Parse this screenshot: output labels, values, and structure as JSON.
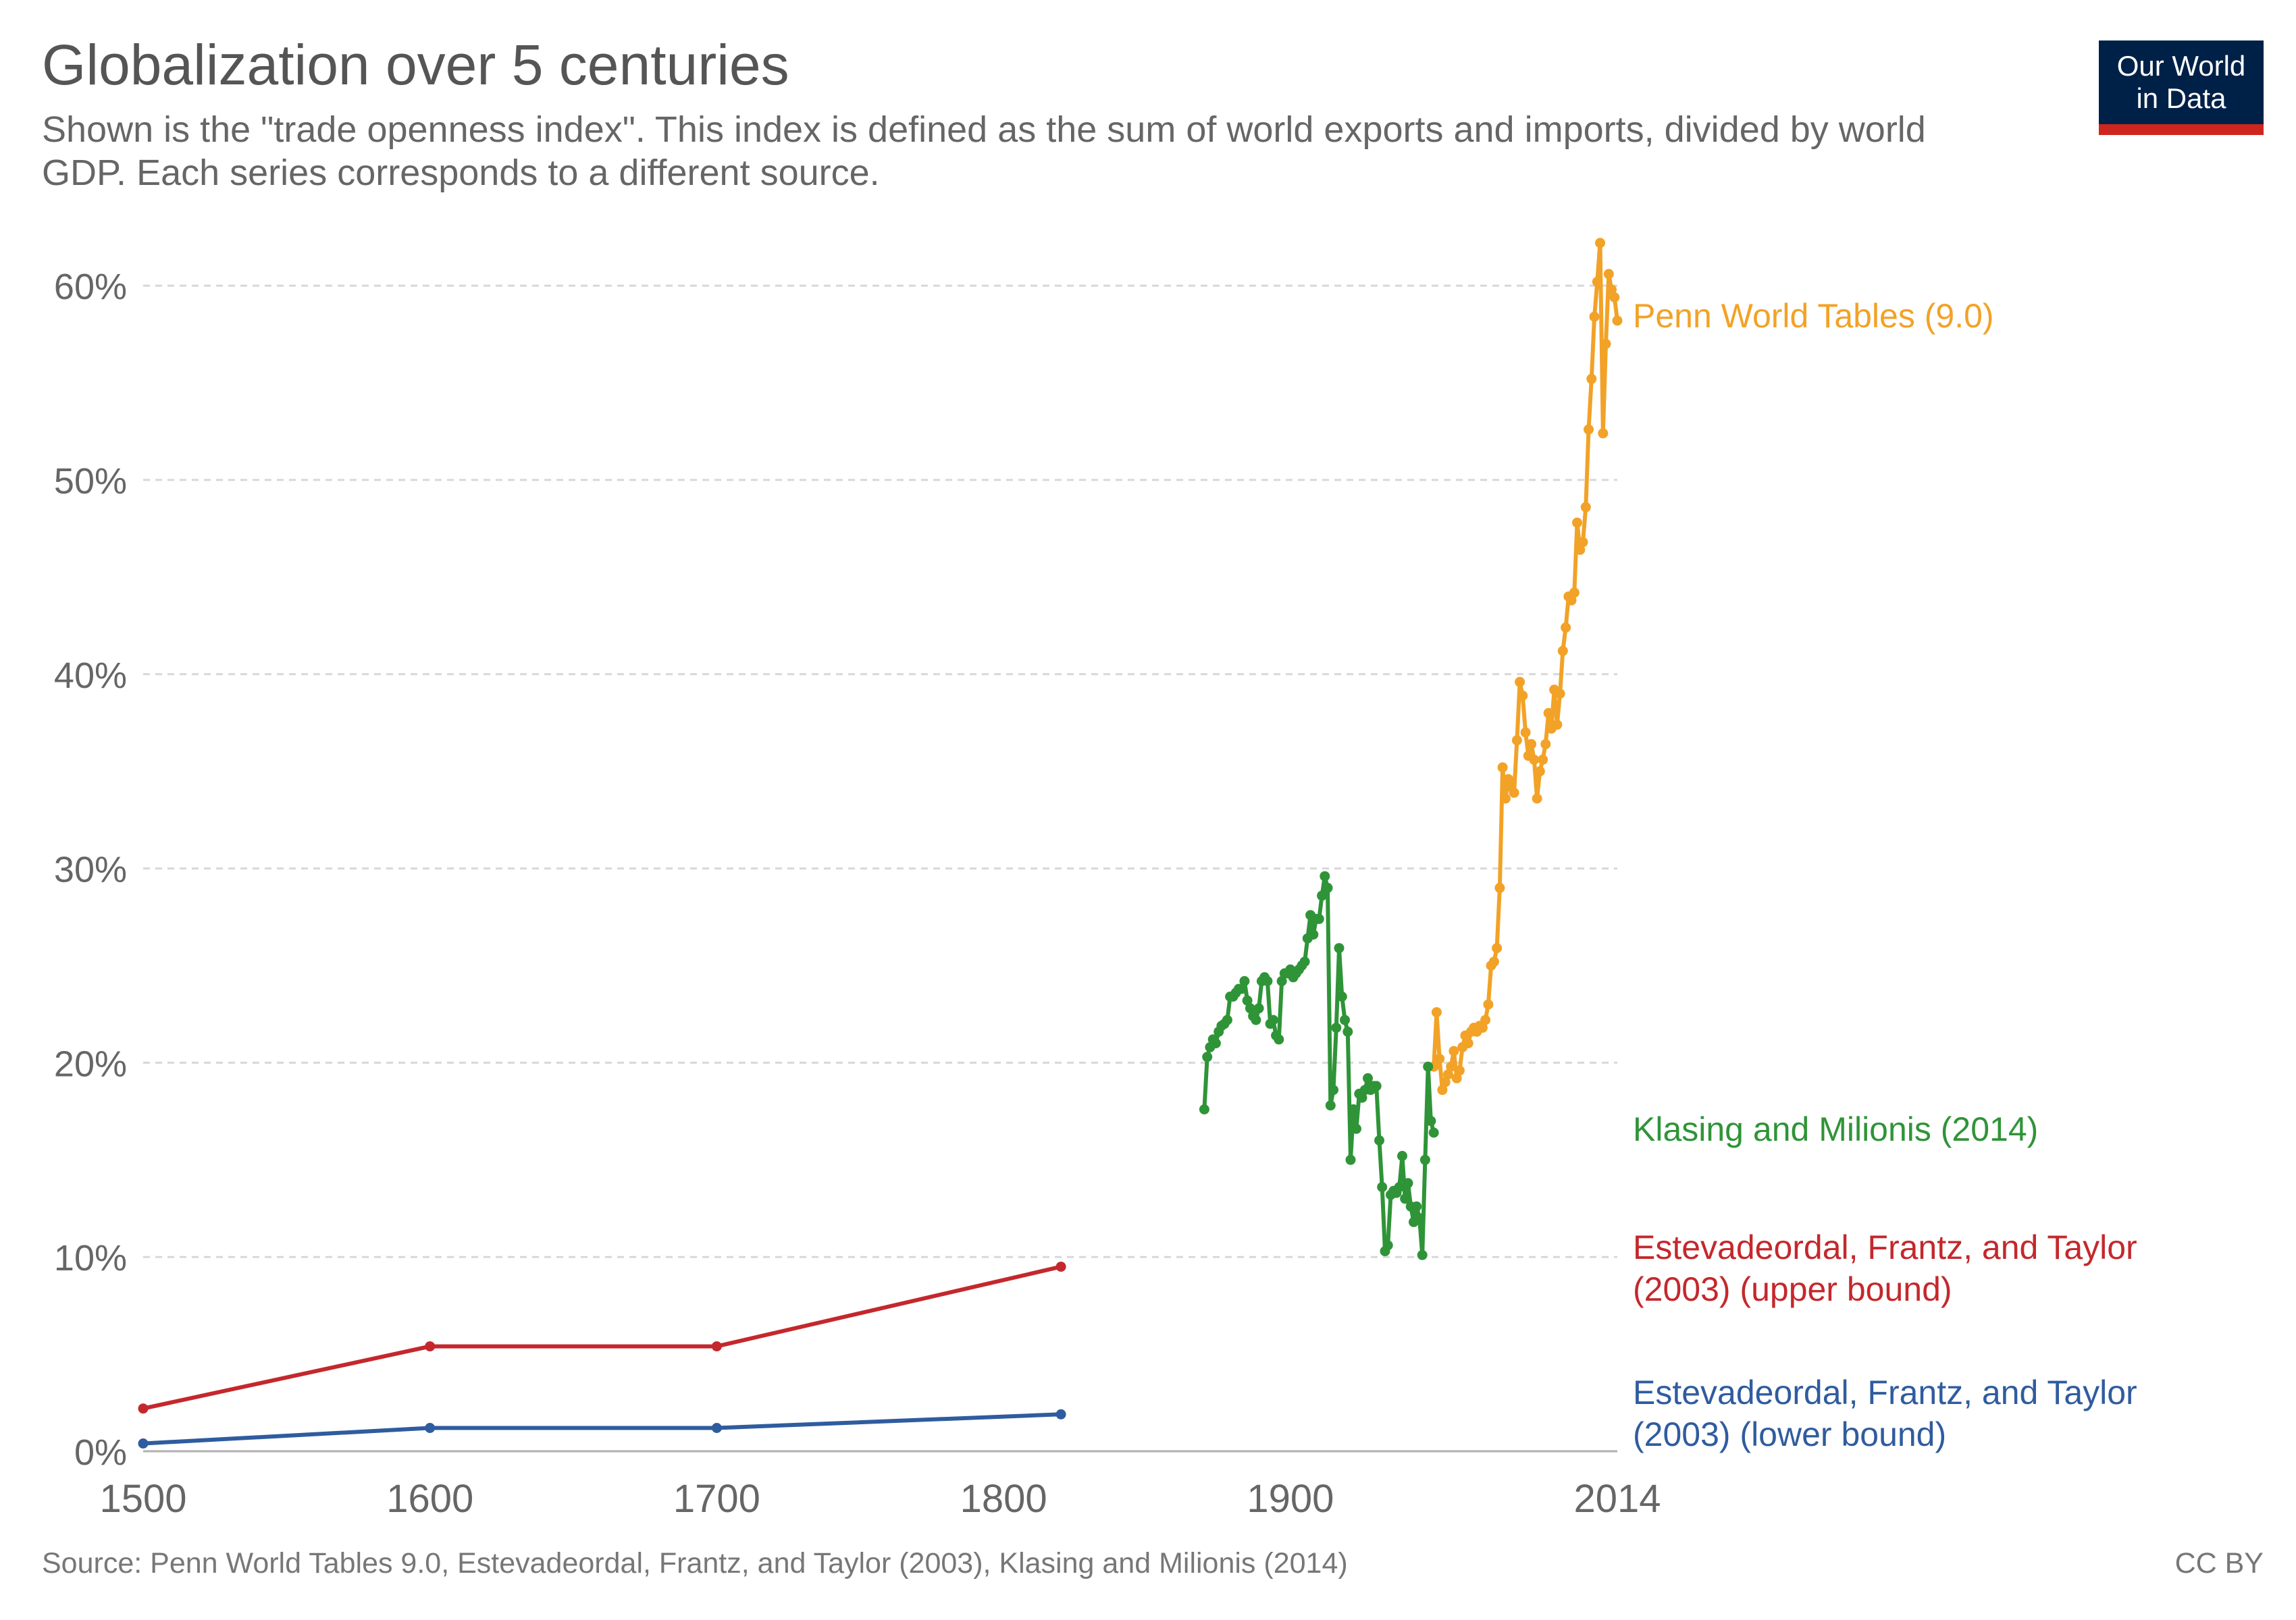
{
  "header": {
    "title": "Globalization over 5 centuries",
    "subtitle": "Shown is the \"trade openness index\". This index is defined as the sum of world exports and imports, divided by world GDP. Each series corresponds to a different source.",
    "logo_line1": "Our World",
    "logo_line2": "in Data"
  },
  "footer": {
    "source": "Source: Penn World Tables 9.0, Estevadeordal, Frantz, and Taylor (2003), Klasing and Milionis (2014)",
    "license": "CC BY"
  },
  "colors": {
    "penn": "#f2a227",
    "klasing": "#2f9438",
    "eft_upper": "#c4282c",
    "eft_lower": "#2f5c9e",
    "logo_bg": "#002147",
    "logo_bar": "#ce261e"
  },
  "chart_data": {
    "type": "line",
    "xlim": [
      1500,
      2014
    ],
    "ylim": [
      0,
      60
    ],
    "x_ticks": [
      "1500",
      "1600",
      "1700",
      "1800",
      "1900",
      "2014"
    ],
    "y_ticks": [
      "0%",
      "10%",
      "20%",
      "30%",
      "40%",
      "50%",
      "60%"
    ],
    "grid": true,
    "series": [
      {
        "name": "Penn World Tables (9.0)",
        "color": "#f2a227",
        "points": [
          [
            1950,
            19.8
          ],
          [
            1951,
            22.6
          ],
          [
            1952,
            20.2
          ],
          [
            1953,
            18.6
          ],
          [
            1954,
            19.0
          ],
          [
            1955,
            19.4
          ],
          [
            1956,
            19.8
          ],
          [
            1957,
            20.6
          ],
          [
            1958,
            19.2
          ],
          [
            1959,
            19.6
          ],
          [
            1960,
            20.8
          ],
          [
            1961,
            21.4
          ],
          [
            1962,
            21.0
          ],
          [
            1963,
            21.6
          ],
          [
            1964,
            21.8
          ],
          [
            1965,
            21.6
          ],
          [
            1966,
            21.9
          ],
          [
            1967,
            21.8
          ],
          [
            1968,
            22.2
          ],
          [
            1969,
            23.0
          ],
          [
            1970,
            25.0
          ],
          [
            1971,
            25.2
          ],
          [
            1972,
            25.9
          ],
          [
            1973,
            29.0
          ],
          [
            1974,
            35.2
          ],
          [
            1975,
            33.6
          ],
          [
            1976,
            34.6
          ],
          [
            1977,
            34.2
          ],
          [
            1978,
            33.9
          ],
          [
            1979,
            36.6
          ],
          [
            1980,
            39.6
          ],
          [
            1981,
            38.9
          ],
          [
            1982,
            37.0
          ],
          [
            1983,
            35.8
          ],
          [
            1984,
            36.4
          ],
          [
            1985,
            35.6
          ],
          [
            1986,
            33.6
          ],
          [
            1987,
            35.0
          ],
          [
            1988,
            35.6
          ],
          [
            1989,
            36.4
          ],
          [
            1990,
            38.0
          ],
          [
            1991,
            37.2
          ],
          [
            1992,
            39.2
          ],
          [
            1993,
            37.4
          ],
          [
            1994,
            39.0
          ],
          [
            1995,
            41.2
          ],
          [
            1996,
            42.4
          ],
          [
            1997,
            44.0
          ],
          [
            1998,
            43.8
          ],
          [
            1999,
            44.2
          ],
          [
            2000,
            47.8
          ],
          [
            2001,
            46.4
          ],
          [
            2002,
            46.8
          ],
          [
            2003,
            48.6
          ],
          [
            2004,
            52.6
          ],
          [
            2005,
            55.2
          ],
          [
            2006,
            58.4
          ],
          [
            2007,
            60.2
          ],
          [
            2008,
            62.2
          ],
          [
            2009,
            52.4
          ],
          [
            2010,
            57.0
          ],
          [
            2011,
            60.6
          ],
          [
            2012,
            59.8
          ],
          [
            2013,
            59.4
          ],
          [
            2014,
            58.2
          ]
        ]
      },
      {
        "name": "Klasing and Milionis (2014)",
        "color": "#2f9438",
        "points": [
          [
            1870,
            17.6
          ],
          [
            1871,
            20.3
          ],
          [
            1872,
            20.8
          ],
          [
            1873,
            21.2
          ],
          [
            1874,
            21.0
          ],
          [
            1875,
            21.6
          ],
          [
            1876,
            21.9
          ],
          [
            1877,
            22.0
          ],
          [
            1878,
            22.2
          ],
          [
            1879,
            23.4
          ],
          [
            1880,
            23.4
          ],
          [
            1881,
            23.6
          ],
          [
            1882,
            23.8
          ],
          [
            1883,
            23.8
          ],
          [
            1884,
            24.2
          ],
          [
            1885,
            23.2
          ],
          [
            1886,
            22.8
          ],
          [
            1887,
            22.4
          ],
          [
            1888,
            22.2
          ],
          [
            1889,
            22.8
          ],
          [
            1890,
            24.2
          ],
          [
            1891,
            24.4
          ],
          [
            1892,
            24.2
          ],
          [
            1893,
            22.0
          ],
          [
            1894,
            22.2
          ],
          [
            1895,
            21.4
          ],
          [
            1896,
            21.2
          ],
          [
            1897,
            24.2
          ],
          [
            1898,
            24.6
          ],
          [
            1899,
            24.6
          ],
          [
            1900,
            24.8
          ],
          [
            1901,
            24.4
          ],
          [
            1902,
            24.6
          ],
          [
            1903,
            24.8
          ],
          [
            1904,
            25.0
          ],
          [
            1905,
            25.2
          ],
          [
            1906,
            26.4
          ],
          [
            1907,
            27.6
          ],
          [
            1908,
            26.6
          ],
          [
            1909,
            27.4
          ],
          [
            1910,
            27.4
          ],
          [
            1911,
            28.6
          ],
          [
            1912,
            29.6
          ],
          [
            1913,
            29.0
          ],
          [
            1914,
            17.8
          ],
          [
            1915,
            18.6
          ],
          [
            1916,
            21.8
          ],
          [
            1917,
            25.9
          ],
          [
            1918,
            23.4
          ],
          [
            1919,
            22.2
          ],
          [
            1920,
            21.6
          ],
          [
            1921,
            15.0
          ],
          [
            1922,
            17.6
          ],
          [
            1923,
            16.6
          ],
          [
            1924,
            18.4
          ],
          [
            1925,
            18.2
          ],
          [
            1926,
            18.6
          ],
          [
            1927,
            19.2
          ],
          [
            1928,
            18.6
          ],
          [
            1929,
            18.8
          ],
          [
            1930,
            18.8
          ],
          [
            1931,
            16.0
          ],
          [
            1932,
            13.6
          ],
          [
            1933,
            10.3
          ],
          [
            1934,
            10.6
          ],
          [
            1935,
            13.2
          ],
          [
            1936,
            13.4
          ],
          [
            1937,
            13.3
          ],
          [
            1938,
            13.6
          ],
          [
            1939,
            15.2
          ],
          [
            1940,
            13.0
          ],
          [
            1941,
            13.8
          ],
          [
            1942,
            12.6
          ],
          [
            1943,
            11.8
          ],
          [
            1944,
            12.6
          ],
          [
            1945,
            12.0
          ],
          [
            1946,
            10.1
          ],
          [
            1947,
            15.0
          ],
          [
            1948,
            19.8
          ],
          [
            1949,
            17.0
          ],
          [
            1950,
            16.4
          ]
        ]
      },
      {
        "name": "Estevadeordal, Frantz, and Taylor (2003) (upper bound)",
        "color": "#c4282c",
        "points": [
          [
            1500,
            2.2
          ],
          [
            1600,
            5.4
          ],
          [
            1700,
            5.4
          ],
          [
            1820,
            9.5
          ]
        ]
      },
      {
        "name": "Estevadeordal, Frantz, and Taylor (2003) (lower bound)",
        "color": "#2f5c9e",
        "points": [
          [
            1500,
            0.4
          ],
          [
            1600,
            1.2
          ],
          [
            1700,
            1.2
          ],
          [
            1820,
            1.9
          ]
        ]
      }
    ],
    "labels": [
      {
        "lines": [
          "Penn World Tables (9.0)"
        ],
        "color": "#f2a227"
      },
      {
        "lines": [
          "Klasing and Milionis (2014)"
        ],
        "color": "#2f9438"
      },
      {
        "lines": [
          "Estevadeordal, Frantz, and Taylor",
          "(2003) (upper bound)"
        ],
        "color": "#c4282c"
      },
      {
        "lines": [
          "Estevadeordal, Frantz, and Taylor",
          "(2003) (lower bound)"
        ],
        "color": "#2f5c9e"
      }
    ]
  }
}
